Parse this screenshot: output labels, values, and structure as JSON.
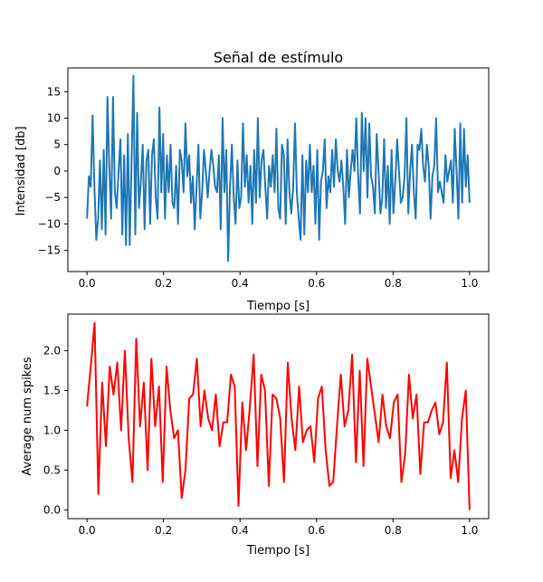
{
  "chart_data": [
    {
      "type": "line",
      "title": "Señal de estímulo",
      "xlabel": "Tiempo [s]",
      "ylabel": "Intensidad [db]",
      "xlim": [
        -0.05,
        1.05
      ],
      "ylim": [
        -19,
        19.5
      ],
      "xticks": [
        0.0,
        0.2,
        0.4,
        0.6,
        0.8,
        1.0
      ],
      "xtick_labels": [
        "0.0",
        "0.2",
        "0.4",
        "0.6",
        "0.8",
        "1.0"
      ],
      "yticks": [
        -15,
        -10,
        -5,
        0,
        5,
        10,
        15
      ],
      "ytick_labels": [
        "−15",
        "−10",
        "−5",
        "0",
        "5",
        "10",
        "15"
      ],
      "grid": false,
      "series": [
        {
          "color": "#1f77b4",
          "x_start": 0.0,
          "x_end": 1.0,
          "values": [
            -9,
            -1,
            -3,
            10.5,
            -3,
            -13,
            -9,
            2,
            -11,
            4,
            -12,
            14,
            1,
            -9,
            14,
            -4,
            -7,
            0,
            6,
            -12,
            3,
            -14,
            7,
            -14,
            2,
            18,
            -12,
            11,
            -7,
            -2,
            5,
            -11,
            2,
            4,
            -10,
            3,
            6,
            -5,
            -9,
            12,
            -4,
            7,
            -9,
            3,
            -4,
            5,
            -6,
            -7,
            1,
            -10,
            4,
            2,
            -4,
            9,
            -1,
            3,
            -6,
            -1,
            -11,
            -3,
            5,
            -9,
            -4,
            4,
            0,
            -5,
            0,
            4,
            1,
            -3,
            -4,
            3,
            -11,
            10,
            -4,
            4,
            -17,
            -3,
            5,
            -5,
            -10,
            2,
            -7,
            -5,
            9,
            -3,
            3,
            -6,
            1,
            -10,
            4,
            -6,
            10,
            -5,
            2,
            4,
            -3,
            -9,
            1,
            -3,
            3,
            -4,
            8,
            -7,
            -9,
            5,
            3,
            -10,
            6,
            -4,
            -8,
            -3,
            9,
            -4,
            -9,
            -13,
            3,
            -12,
            2,
            -4,
            5,
            -4,
            1,
            -10,
            4,
            -13,
            -2,
            0,
            6,
            -7,
            -1,
            -4,
            4,
            -3,
            6,
            0,
            -2,
            2,
            -3,
            -10,
            4,
            -5,
            0,
            4,
            0,
            10,
            -1,
            -8,
            11,
            0,
            10,
            -5,
            9,
            -1,
            -3,
            -8,
            7,
            0,
            -8,
            -5,
            6,
            -7,
            1,
            -10,
            4,
            -8,
            -2,
            6,
            0,
            -6,
            -5,
            -1,
            10,
            -8,
            0,
            5,
            -4,
            -9,
            5,
            4,
            8,
            1,
            -2,
            5,
            1,
            -9,
            -1,
            1,
            10,
            -4,
            -2,
            -4,
            -6,
            3,
            -2,
            0,
            2,
            -6,
            8,
            0,
            -9,
            9,
            -6,
            8,
            -3,
            3,
            -6
          ]
        }
      ]
    },
    {
      "type": "line",
      "title": "",
      "xlabel": "Tiempo [s]",
      "ylabel": "Average num spikes",
      "xlim": [
        -0.05,
        1.05
      ],
      "ylim": [
        -0.11,
        2.46
      ],
      "xticks": [
        0.0,
        0.2,
        0.4,
        0.6,
        0.8,
        1.0
      ],
      "xtick_labels": [
        "0.0",
        "0.2",
        "0.4",
        "0.6",
        "0.8",
        "1.0"
      ],
      "yticks": [
        0.0,
        0.5,
        1.0,
        1.5,
        2.0
      ],
      "ytick_labels": [
        "0.0",
        "0.5",
        "1.0",
        "1.5",
        "2.0"
      ],
      "grid": false,
      "series": [
        {
          "color": "#ff0000",
          "x_start": 0.0,
          "x_end": 1.0,
          "values": [
            1.3,
            1.8,
            2.35,
            0.2,
            1.6,
            0.8,
            1.8,
            1.45,
            1.85,
            1.0,
            2.0,
            0.9,
            0.35,
            2.15,
            1.05,
            1.6,
            0.5,
            1.9,
            1.05,
            1.55,
            0.35,
            1.8,
            1.25,
            0.9,
            1.0,
            0.15,
            0.5,
            1.4,
            1.45,
            1.9,
            1.05,
            1.5,
            1.15,
            1.0,
            1.45,
            0.8,
            1.1,
            1.1,
            1.7,
            1.55,
            0.05,
            1.35,
            0.75,
            1.3,
            1.95,
            0.55,
            1.7,
            1.5,
            0.3,
            1.45,
            1.4,
            1.15,
            0.35,
            1.85,
            1.15,
            0.75,
            1.55,
            0.85,
            1.0,
            1.05,
            0.6,
            1.4,
            1.55,
            0.75,
            0.3,
            0.35,
            1.05,
            1.7,
            1.05,
            1.25,
            1.95,
            0.6,
            1.75,
            0.55,
            1.9,
            1.55,
            1.2,
            0.85,
            1.45,
            1.05,
            0.9,
            1.35,
            1.45,
            0.35,
            0.7,
            1.7,
            1.15,
            1.45,
            0.45,
            1.1,
            1.1,
            1.25,
            1.35,
            0.95,
            1.1,
            1.85,
            0.4,
            0.75,
            0.35,
            1.15,
            1.5,
            0.0
          ]
        }
      ]
    }
  ]
}
